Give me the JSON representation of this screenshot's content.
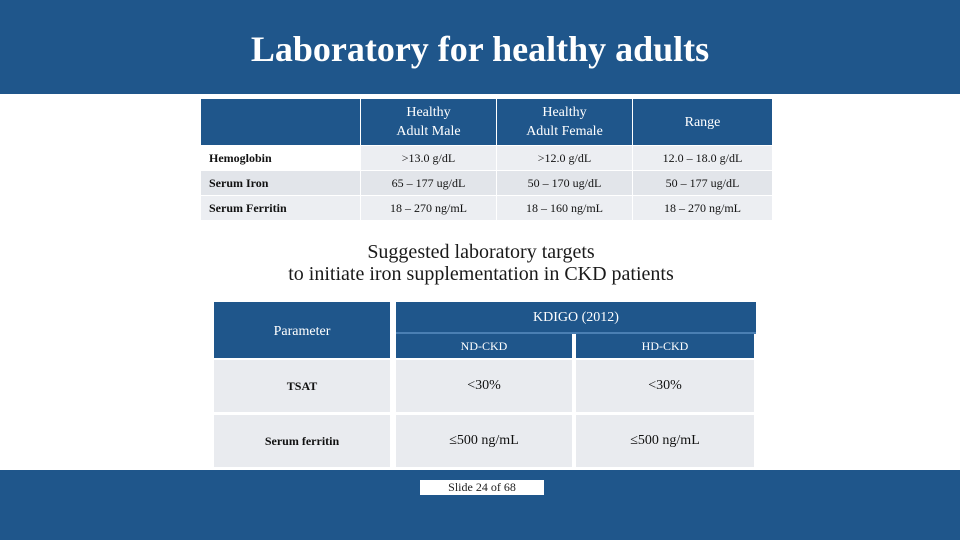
{
  "slide": {
    "title": "Laboratory for healthy adults",
    "subtitle_line1": "Suggested laboratory targets",
    "subtitle_line2": "to initiate iron supplementation in CKD patients",
    "slide_number": "Slide 24 of 68"
  },
  "table1": {
    "headers": [
      "",
      "Healthy Adult Male",
      "Healthy Adult Female",
      "Range"
    ],
    "header_lines": [
      [
        "",
        ""
      ],
      [
        "Healthy",
        "Adult Male"
      ],
      [
        "Healthy",
        "Adult Female"
      ],
      [
        "Range",
        ""
      ]
    ],
    "rows": [
      [
        "Hemoglobin",
        ">13.0  g/dL",
        ">12.0  g/dL",
        "12.0 – 18.0 g/dL"
      ],
      [
        "Serum Iron",
        "65 – 177 ug/dL",
        "50 – 170 ug/dL",
        "50 – 177 ug/dL"
      ],
      [
        "Serum Ferritin",
        "18 – 270 ng/mL",
        "18 – 160 ng/mL",
        "18 – 270 ng/mL"
      ]
    ]
  },
  "table2": {
    "param_header": "Parameter",
    "group_header": "KDIGO (2012)",
    "sub_headers": [
      "ND-CKD",
      "HD-CKD"
    ],
    "rows": [
      [
        "TSAT",
        "<30%",
        "<30%"
      ],
      [
        "Serum ferritin",
        "≤500 ng/mL",
        "≤500 ng/mL"
      ]
    ]
  },
  "colors": {
    "brand_blue": "#1f568b",
    "row_light": "#eceef2",
    "row_alt": "#e2e5ea"
  }
}
